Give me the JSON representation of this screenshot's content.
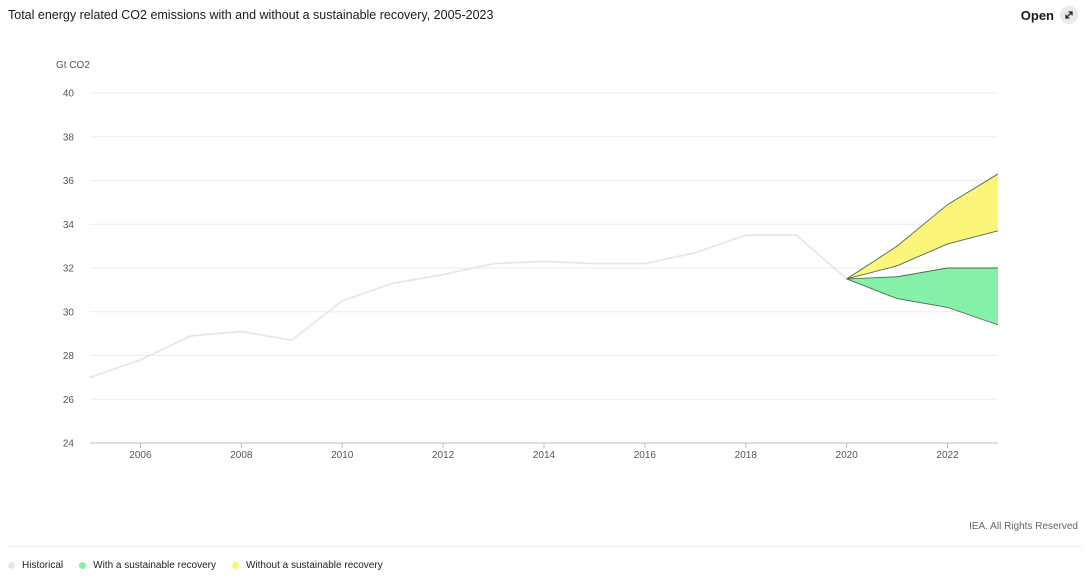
{
  "header": {
    "title": "Total energy related CO2 emissions with and without a sustainable recovery, 2005-2023",
    "open_label": "Open",
    "open_icon": "expand-icon"
  },
  "footer": {
    "credit": "IEA. All Rights Reserved"
  },
  "legend": [
    {
      "label": "Historical",
      "color": "#e8e8e8"
    },
    {
      "label": "With a sustainable recovery",
      "color": "#84f0a8"
    },
    {
      "label": "Without a sustainable recovery",
      "color": "#fbf57a"
    }
  ],
  "chart_data": {
    "type": "area",
    "ylabel": "Gt CO2",
    "ylim": [
      24,
      40
    ],
    "xlim": [
      2005,
      2023
    ],
    "yticks": [
      "24",
      "26",
      "28",
      "30",
      "32",
      "34",
      "36",
      "38",
      "40"
    ],
    "xticks": [
      "2006",
      "2008",
      "2010",
      "2012",
      "2014",
      "2016",
      "2018",
      "2020",
      "2022"
    ],
    "grid": true,
    "legend_position": "bottom",
    "series": [
      {
        "name": "Historical",
        "type": "line",
        "color": "#ede3ea",
        "x": [
          2005,
          2006,
          2007,
          2008,
          2009,
          2010,
          2011,
          2012,
          2013,
          2014,
          2015,
          2016,
          2017,
          2018,
          2019,
          2020
        ],
        "y": [
          27.0,
          27.8,
          28.9,
          29.1,
          28.7,
          30.5,
          31.3,
          31.7,
          32.2,
          32.3,
          32.2,
          32.2,
          32.7,
          33.5,
          33.5,
          31.5
        ]
      },
      {
        "name": "With a sustainable recovery",
        "type": "band",
        "color": "#84f0a8",
        "x": [
          2020,
          2021,
          2022,
          2023
        ],
        "upper": [
          31.5,
          31.6,
          32.0,
          32.0
        ],
        "lower": [
          31.5,
          30.6,
          30.2,
          29.4
        ]
      },
      {
        "name": "Without a sustainable recovery",
        "type": "band",
        "color": "#fbf57a",
        "x": [
          2020,
          2021,
          2022,
          2023
        ],
        "upper": [
          31.5,
          33.0,
          34.9,
          36.3
        ],
        "lower": [
          31.5,
          32.1,
          33.1,
          33.7
        ]
      }
    ]
  }
}
